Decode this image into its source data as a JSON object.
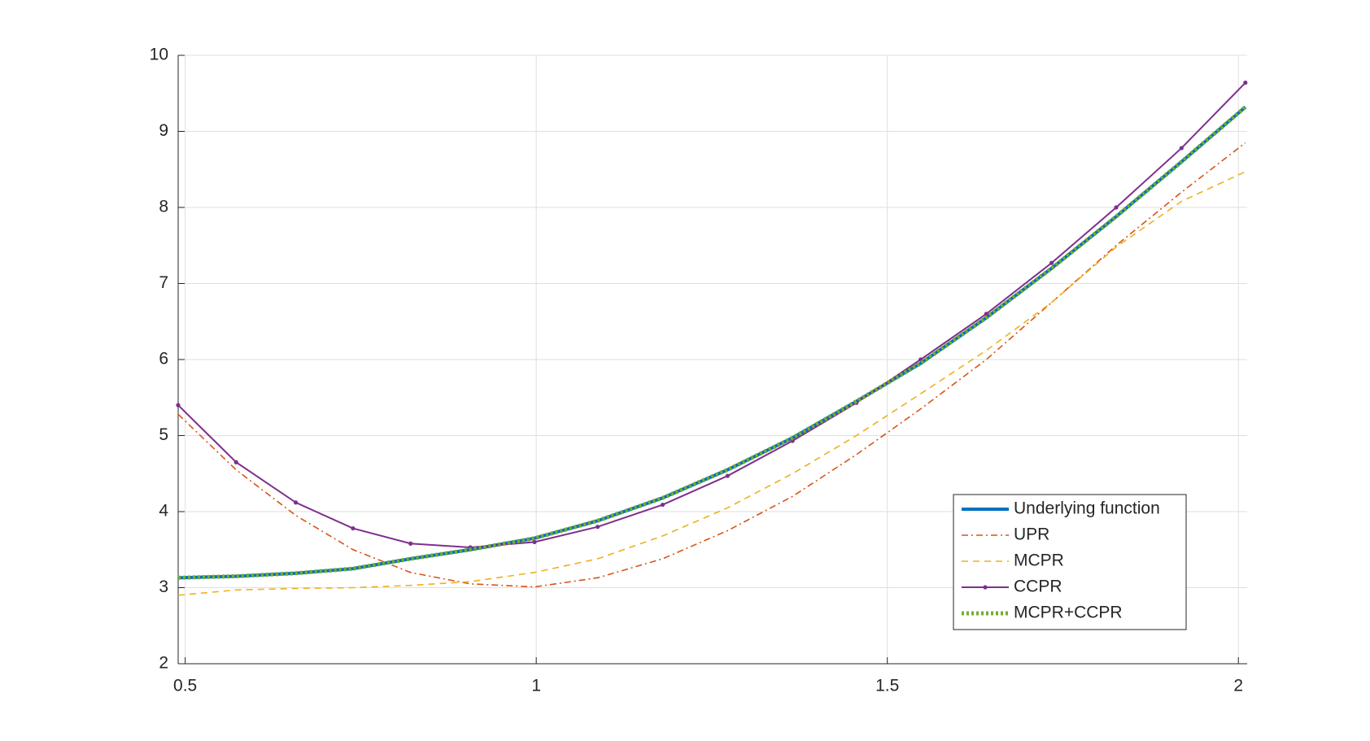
{
  "chart_data": {
    "type": "line",
    "x": [
      0.49,
      0.5725,
      0.6575,
      0.739,
      0.821,
      0.906,
      0.9975,
      1.0875,
      1.18,
      1.2725,
      1.365,
      1.456,
      1.5475,
      1.641,
      1.734,
      1.826,
      1.919,
      2.01
    ],
    "series": [
      {
        "name": "Underlying function",
        "color": "#0072bd",
        "style": "solid",
        "values": [
          3.13,
          3.15,
          3.19,
          3.25,
          3.38,
          3.5,
          3.65,
          3.88,
          4.18,
          4.55,
          4.97,
          5.45,
          5.95,
          6.55,
          7.2,
          7.88,
          8.6,
          9.32
        ]
      },
      {
        "name": "UPR",
        "color": "#d95319",
        "style": "dashdot",
        "values": [
          5.28,
          4.55,
          3.95,
          3.5,
          3.2,
          3.05,
          3.01,
          3.13,
          3.38,
          3.75,
          4.2,
          4.75,
          5.35,
          6.0,
          6.75,
          7.5,
          8.2,
          8.85
        ]
      },
      {
        "name": "MCPR",
        "color": "#edb120",
        "style": "dashed",
        "values": [
          2.9,
          2.97,
          2.99,
          3.0,
          3.03,
          3.08,
          3.2,
          3.38,
          3.68,
          4.05,
          4.5,
          5.0,
          5.55,
          6.12,
          6.75,
          7.48,
          8.08,
          8.47
        ]
      },
      {
        "name": "CCPR",
        "color": "#7e2f8e",
        "style": "marker",
        "values": [
          5.4,
          4.65,
          4.12,
          3.78,
          3.58,
          3.53,
          3.6,
          3.8,
          4.09,
          4.47,
          4.93,
          5.43,
          6.0,
          6.6,
          7.27,
          8.0,
          8.78,
          9.64
        ]
      },
      {
        "name": "MCPR+CCPR",
        "color": "#77ac30",
        "style": "dotted",
        "values": [
          3.13,
          3.15,
          3.19,
          3.25,
          3.38,
          3.5,
          3.65,
          3.88,
          4.18,
          4.55,
          4.97,
          5.45,
          5.95,
          6.55,
          7.2,
          7.88,
          8.6,
          9.32
        ]
      }
    ],
    "xlim": [
      0.49,
      2.0125
    ],
    "xticks": [
      0.5,
      1,
      1.5,
      2
    ],
    "ylim": [
      2,
      10
    ],
    "yticks": [
      2,
      3,
      4,
      5,
      6,
      7,
      8,
      9,
      10
    ],
    "grid": true,
    "legend": "southeast"
  }
}
